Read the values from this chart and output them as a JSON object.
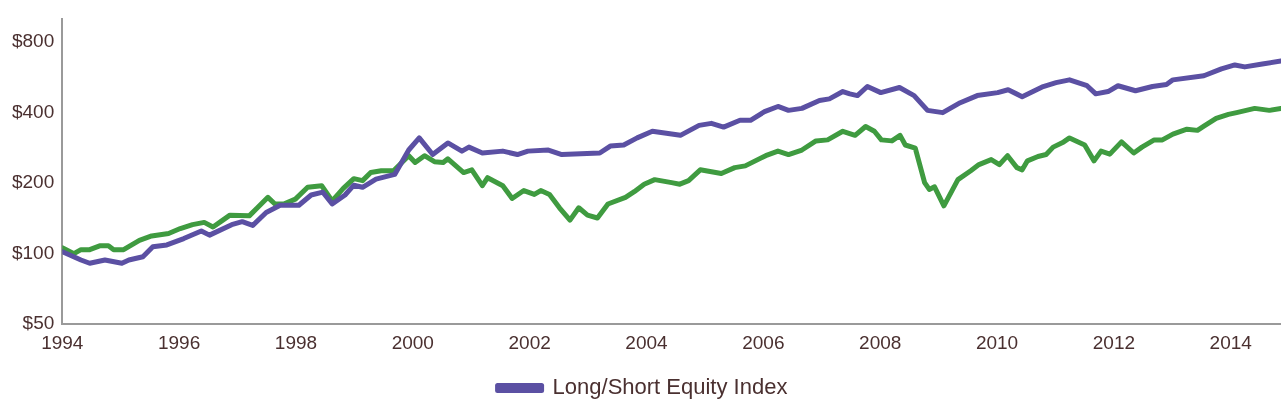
{
  "chart_data": {
    "type": "line",
    "log": "y",
    "grid": false,
    "legend": "bottom",
    "marker": "none",
    "line_style": "solid",
    "xlim": [
      1994,
      2014.86
    ],
    "ylim": [
      50,
      1000
    ],
    "xticks": [
      1994,
      1996,
      1998,
      2000,
      2002,
      2004,
      2006,
      2008,
      2010,
      2012,
      2014
    ],
    "yticks": [
      {
        "value": 50,
        "label": "$50"
      },
      {
        "value": 100,
        "label": "$100"
      },
      {
        "value": 200,
        "label": "$200"
      },
      {
        "value": 400,
        "label": "$400"
      },
      {
        "value": 800,
        "label": "$800"
      }
    ],
    "series": [
      {
        "name": "Long/Short Equity Index",
        "color": "#5b50a3",
        "x": [
          1994.0,
          1994.32,
          1994.47,
          1994.73,
          1995.02,
          1995.14,
          1995.38,
          1995.55,
          1995.79,
          1996.08,
          1996.38,
          1996.52,
          1996.9,
          1997.08,
          1997.26,
          1997.49,
          1997.73,
          1998.05,
          1998.26,
          1998.46,
          1998.62,
          1998.84,
          1998.99,
          1999.14,
          1999.37,
          1999.69,
          1999.93,
          2000.11,
          2000.34,
          2000.6,
          2000.84,
          2000.96,
          2001.19,
          2001.54,
          2001.79,
          2001.97,
          2002.32,
          2002.55,
          2003.2,
          2003.38,
          2003.61,
          2003.84,
          2004.1,
          2004.43,
          2004.58,
          2004.9,
          2005.11,
          2005.32,
          2005.6,
          2005.78,
          2006.02,
          2006.25,
          2006.43,
          2006.66,
          2006.96,
          2007.13,
          2007.36,
          2007.48,
          2007.61,
          2007.78,
          2008.01,
          2008.33,
          2008.58,
          2008.81,
          2009.07,
          2009.37,
          2009.66,
          2010.01,
          2010.19,
          2010.43,
          2010.79,
          2011.01,
          2011.24,
          2011.54,
          2011.69,
          2011.9,
          2012.07,
          2012.37,
          2012.66,
          2012.9,
          2013.01,
          2013.54,
          2013.84,
          2014.07,
          2014.24,
          2014.54,
          2014.86
        ],
        "values": [
          102,
          94,
          91,
          94,
          91,
          94,
          97,
          107,
          109,
          116,
          125,
          120,
          133,
          137,
          132,
          150,
          161,
          161,
          178,
          183,
          163,
          178,
          196,
          192,
          208,
          218,
          277,
          312,
          265,
          297,
          274,
          285,
          269,
          274,
          265,
          274,
          277,
          265,
          269,
          288,
          291,
          312,
          333,
          324,
          320,
          353,
          360,
          347,
          371,
          371,
          404,
          425,
          409,
          417,
          451,
          458,
          492,
          481,
          473,
          517,
          487,
          512,
          473,
          409,
          400,
          441,
          473,
          487,
          501,
          468,
          517,
          537,
          552,
          521,
          481,
          492,
          521,
          496,
          517,
          527,
          552,
          575,
          615,
          639,
          627,
          645,
          664
        ]
      },
      {
        "color": "#3f9b40",
        "x": [
          1994.0,
          1994.2,
          1994.32,
          1994.47,
          1994.64,
          1994.79,
          1994.88,
          1995.05,
          1995.32,
          1995.53,
          1995.82,
          1996.02,
          1996.23,
          1996.43,
          1996.58,
          1996.73,
          1996.87,
          1997.2,
          1997.34,
          1997.52,
          1997.64,
          1997.79,
          1997.99,
          1998.2,
          1998.44,
          1998.62,
          1998.81,
          1998.99,
          1999.14,
          1999.28,
          1999.46,
          1999.67,
          1999.93,
          2000.04,
          2000.2,
          2000.37,
          2000.52,
          2000.6,
          2000.87,
          2001.01,
          2001.19,
          2001.28,
          2001.54,
          2001.7,
          2001.9,
          2002.08,
          2002.19,
          2002.34,
          2002.51,
          2002.69,
          2002.84,
          2002.99,
          2003.16,
          2003.34,
          2003.64,
          2003.79,
          2003.96,
          2004.14,
          2004.43,
          2004.57,
          2004.72,
          2004.92,
          2005.28,
          2005.51,
          2005.69,
          2006.04,
          2006.25,
          2006.43,
          2006.66,
          2006.9,
          2007.1,
          2007.36,
          2007.57,
          2007.75,
          2007.9,
          2008.02,
          2008.2,
          2008.34,
          2008.43,
          2008.6,
          2008.76,
          2008.84,
          2008.93,
          2009.09,
          2009.33,
          2009.55,
          2009.69,
          2009.9,
          2010.04,
          2010.18,
          2010.34,
          2010.43,
          2010.52,
          2010.7,
          2010.84,
          2010.96,
          2011.14,
          2011.24,
          2011.5,
          2011.66,
          2011.78,
          2011.93,
          2012.13,
          2012.34,
          2012.48,
          2012.69,
          2012.83,
          2013.01,
          2013.25,
          2013.43,
          2013.54,
          2013.75,
          2013.96,
          2014.1,
          2014.41,
          2014.66,
          2014.86
        ],
        "values": [
          106,
          100,
          104,
          104,
          108,
          108,
          104,
          104,
          114,
          119,
          122,
          128,
          133,
          136,
          130,
          138,
          146,
          145,
          157,
          174,
          163,
          163,
          171,
          192,
          195,
          168,
          190,
          209,
          205,
          222,
          226,
          226,
          262,
          245,
          262,
          247,
          245,
          254,
          222,
          228,
          195,
          211,
          195,
          172,
          186,
          179,
          186,
          179,
          157,
          139,
          157,
          146,
          142,
          163,
          174,
          184,
          198,
          207,
          201,
          198,
          205,
          228,
          220,
          233,
          237,
          262,
          274,
          265,
          277,
          303,
          306,
          333,
          320,
          349,
          333,
          306,
          303,
          320,
          291,
          282,
          201,
          188,
          193,
          160,
          207,
          226,
          240,
          252,
          240,
          262,
          233,
          228,
          249,
          260,
          265,
          285,
          300,
          312,
          291,
          249,
          274,
          266,
          300,
          269,
          285,
          306,
          306,
          324,
          340,
          336,
          350,
          378,
          393,
          400,
          417,
          409,
          417
        ]
      }
    ]
  }
}
